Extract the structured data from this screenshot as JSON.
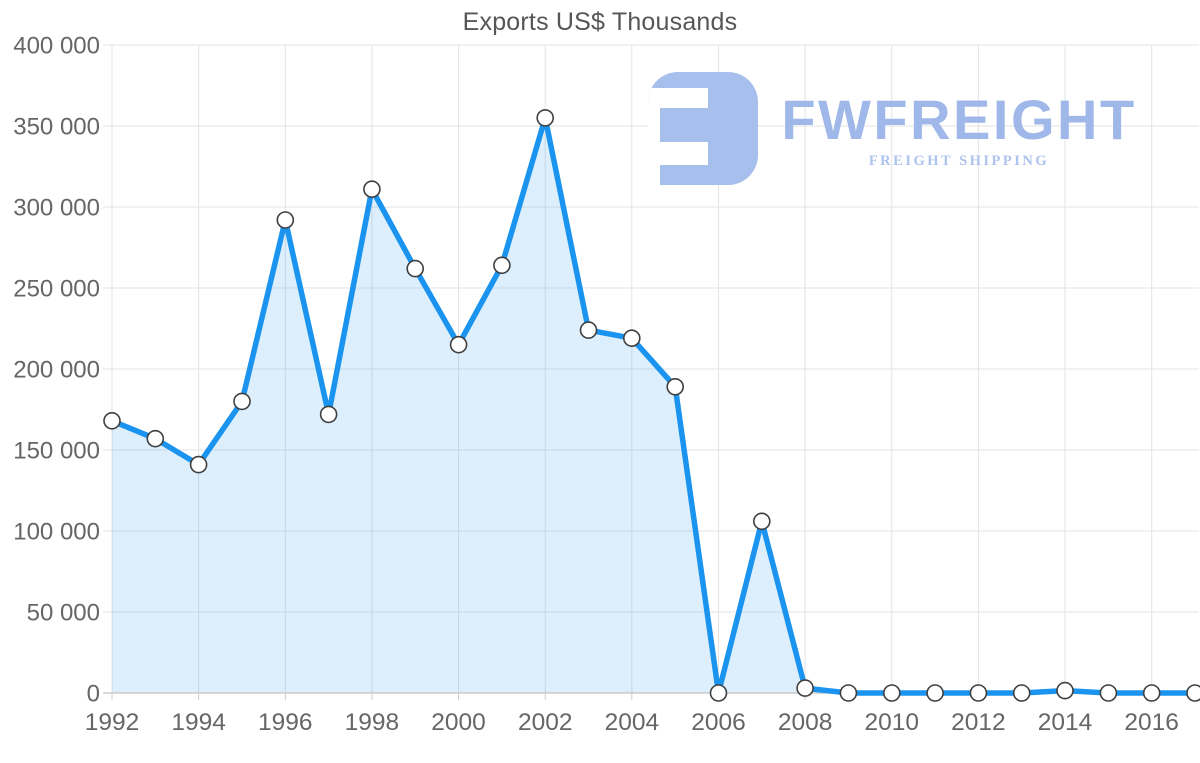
{
  "title": "Exports US$ Thousands",
  "logo": {
    "name": "FWFREIGHT",
    "tagline": "FREIGHT SHIPPING",
    "mark_color": "#a7bfec",
    "text_color": "#9fb8e9",
    "tagline_color": "#aec3ee"
  },
  "chart_data": {
    "type": "area",
    "title": "Exports US$ Thousands",
    "x": [
      1992,
      1993,
      1994,
      1995,
      1996,
      1997,
      1998,
      1999,
      2000,
      2001,
      2002,
      2003,
      2004,
      2005,
      2006,
      2007,
      2008,
      2009,
      2010,
      2011,
      2012,
      2013,
      2014,
      2015,
      2016,
      2017
    ],
    "series": [
      {
        "name": "Exports US$ Thousands",
        "values": [
          168000,
          157000,
          141000,
          180000,
          292000,
          172000,
          311000,
          262000,
          215000,
          264000,
          355000,
          224000,
          219000,
          189000,
          0,
          106000,
          3000,
          0,
          0,
          0,
          0,
          0,
          1500,
          0,
          0,
          0
        ]
      }
    ],
    "ylim": [
      0,
      400000
    ],
    "y_tick_step": 50000,
    "y_tick_labels": [
      "0",
      "50 000",
      "100 000",
      "150 000",
      "200 000",
      "250 000",
      "300 000",
      "350 000",
      "400 000"
    ],
    "x_tick_labels": [
      "1992",
      "1994",
      "1996",
      "1998",
      "2000",
      "2002",
      "2004",
      "2006",
      "2008",
      "2010",
      "2012",
      "2014",
      "2016"
    ],
    "x_tick_every": 2,
    "grid": true,
    "legend": "none",
    "line_color": "#1b94f0",
    "fill_color": "rgba(27,148,240,0.15)",
    "marker_fill": "#ffffff",
    "marker_stroke": "#3f3f3f",
    "gridline_color": "#e3e3e3",
    "axis_line_color": "#c2c2c2",
    "tick_color": "#cccccc",
    "label_color": "#666666"
  }
}
